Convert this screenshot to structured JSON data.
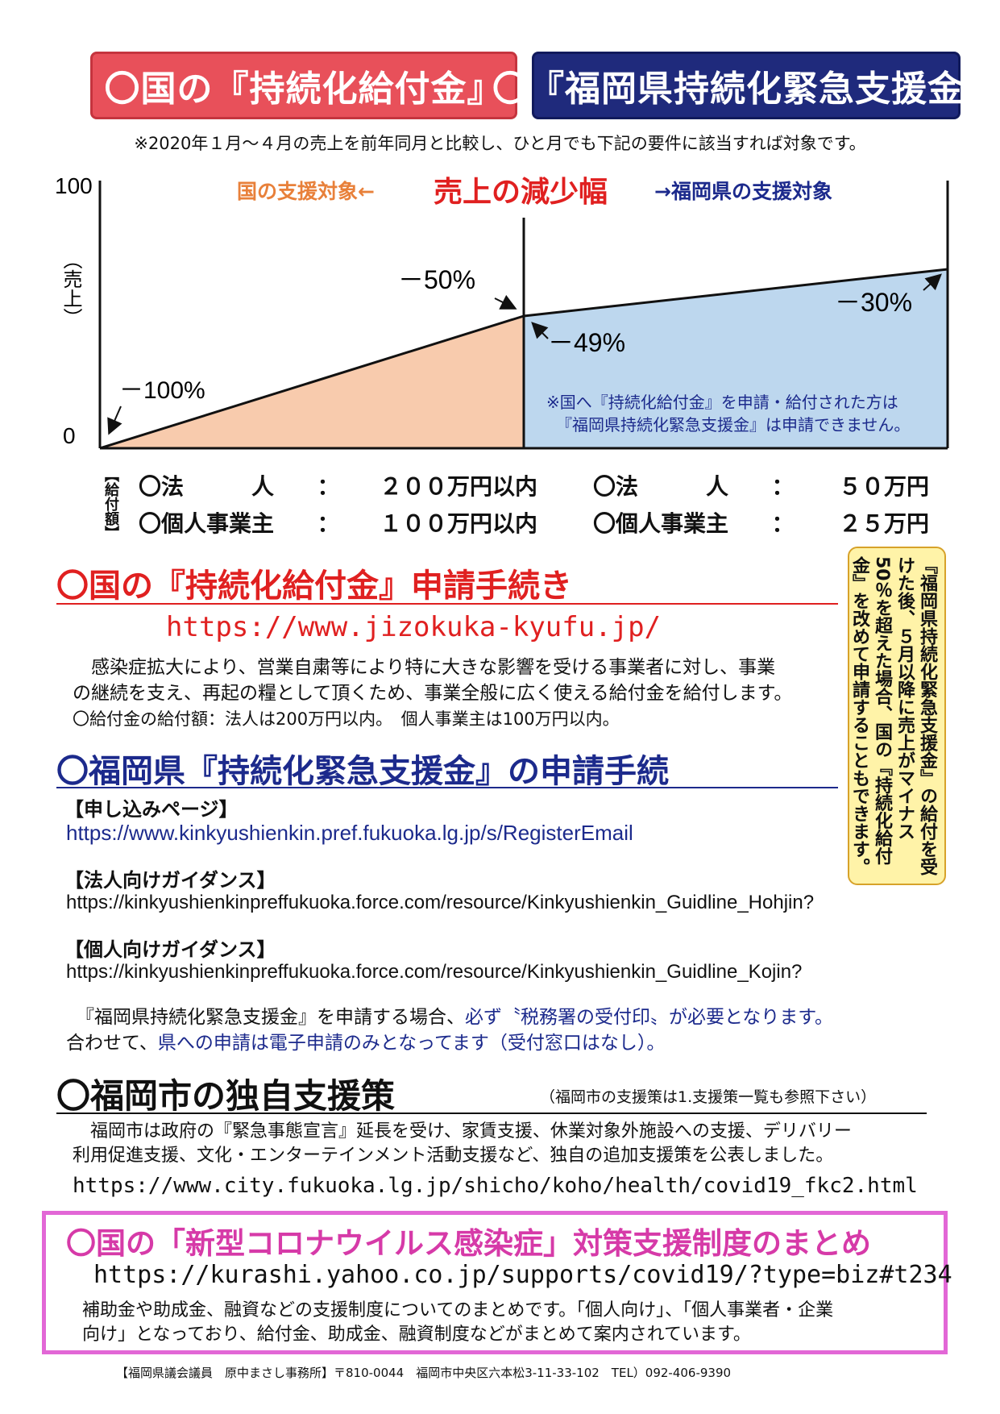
{
  "header": {
    "left_title": "〇国の『持続化給付金』",
    "right_title": "〇『福岡県持続化緊急支援金』"
  },
  "top_note": "※2020年１月～４月の売上を前年同月と比較し、ひと月でも下記の要件に該当すれば対象です。",
  "chart_data": {
    "type": "area",
    "title": "売上の減少幅",
    "left_label": "国の支援対象←",
    "right_label": "→福岡県の支援対象",
    "y_ticks": [
      "100",
      "0"
    ],
    "y_axis_label": "（売上）",
    "ylim": [
      0,
      100
    ],
    "series": [
      {
        "name": "国の支援対象",
        "points": [
          {
            "decline": "－100%",
            "sales": 0
          },
          {
            "decline": "－50%",
            "sales": 50
          }
        ],
        "color": "#f8cbad"
      },
      {
        "name": "福岡県の支援対象",
        "points": [
          {
            "decline": "－49%",
            "sales": 51
          },
          {
            "decline": "－30%",
            "sales": 70
          }
        ],
        "color": "#bdd7ee"
      }
    ],
    "annotations": [
      "－100%",
      "－50%",
      "－49%",
      "－30%"
    ],
    "inner_note_line1": "※国へ『持続化給付金』を申請・給付された方は",
    "inner_note_line2": "『福岡県持続化緊急支援金』は申請できません。"
  },
  "grants": {
    "side_label": "【給付額】",
    "left": [
      {
        "label": "〇法　　　人",
        "colon": "：",
        "amount": "２００万円以内"
      },
      {
        "label": "〇個人事業主",
        "colon": "：",
        "amount": "１００万円以内"
      }
    ],
    "right": [
      {
        "label": "〇法　　　人",
        "colon": "：",
        "amount": "５０万円"
      },
      {
        "label": "〇個人事業主",
        "colon": "：",
        "amount": "２５万円"
      }
    ]
  },
  "national": {
    "title": "〇国の『持続化給付金』申請手続き",
    "url": "https://www.jizokuka-kyufu.jp/",
    "desc_line1": "　感染症拡大により、営業自粛等により特に大きな影響を受ける事業者に対し、事業",
    "desc_line2": "の継続を支え、再起の糧として頂くため、事業全般に広く使える給付金を給付します。",
    "desc_line3": "〇給付金の給付額：法人は200万円以内。　個人事業主は100万円以内。"
  },
  "side_note": "『福岡県持続化緊急支援金』の給付を受けた後、５月以降に売上がマイナス50％を超えた場合、国の『持続化給付金』を改めて申請することもできます。",
  "fukuoka_pref": {
    "title": "〇福岡県『持続化緊急支援金』の申請手続",
    "apply_heading": "【申し込みページ】",
    "apply_url": "https://www.kinkyushienkin.pref.fukuoka.lg.jp/s/RegisterEmail",
    "corp_heading": "【法人向けガイダンス】",
    "corp_url": "https://kinkyushienkinpreffukuoka.force.com/resource/Kinkyushienkin_Guidline_Hohjin?",
    "indiv_heading": "【個人向けガイダンス】",
    "indiv_url": "https://kinkyushienkinpreffukuoka.force.com/resource/Kinkyushienkin_Guidline_Kojin?",
    "note1_a": "『福岡県持続化緊急支援金』を申請する場合、",
    "note1_b": "必ず〝税務署の受付印〟が必要となります。",
    "note2_a": "合わせて、",
    "note2_b": "県への申請は電子申請のみとなってます（受付窓口はなし）。"
  },
  "fukuoka_city": {
    "title": "〇福岡市の独自支援策",
    "aside": "（福岡市の支援策は1.支援策一覧も参照下さい）",
    "desc_line1": "　福岡市は政府の『緊急事態宣言』延長を受け、家賃支援、休業対象外施設への支援、デリバリー",
    "desc_line2": "利用促進支援、文化・エンターテインメント活動支援など、独自の追加支援策を公表しました。",
    "url": "https://www.city.fukuoka.lg.jp/shicho/koho/health/covid19_fkc2.html"
  },
  "summary": {
    "title": "〇国の「新型コロナウイルス感染症」対策支援制度のまとめ",
    "url": "https://kurashi.yahoo.co.jp/supports/covid19/?type=biz#t234",
    "desc_line1": "補助金や助成金、融資などの支援制度についてのまとめです。「個人向け」、「個人事業者・企業",
    "desc_line2": "向け」となっており、給付金、助成金、融資制度などがまとめて案内されています。"
  },
  "footer": "【福岡県議会議員　原中まさし事務所】〒810-0044　福岡市中央区六本松3-11-33-102　TEL）092-406-9390",
  "colors": {
    "red": "#e02020",
    "navy": "#1c2a8c",
    "orange": "#e8803a",
    "magenta": "#d63aa8"
  }
}
